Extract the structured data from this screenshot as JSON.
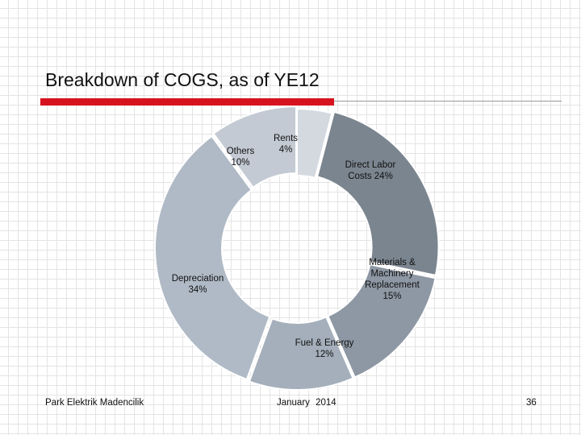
{
  "slide": {
    "title": "Breakdown of COGS, as of YE12",
    "footer_left": "Park Elektrik Madencilik",
    "footer_center": "January  2014",
    "page_number": "36"
  },
  "colors": {
    "title_rule": "#d7121f",
    "separator": "#ffffff"
  },
  "chart_data": {
    "type": "pie",
    "variant": "donut",
    "title": "",
    "legend": "none",
    "slices": [
      {
        "name": "Rents",
        "value": 4,
        "label_lines": [
          "Rents",
          "4%"
        ],
        "color": "#d4d9df"
      },
      {
        "name": "Direct Labor Costs",
        "value": 24,
        "label_lines": [
          "Direct Labor",
          "Costs 24%"
        ],
        "color": "#7b858f"
      },
      {
        "name": "Materials & Machinery Replacement",
        "value": 15,
        "label_lines": [
          "Materials &",
          "Machinery",
          "Replacement",
          "15%"
        ],
        "color": "#8e98a4"
      },
      {
        "name": "Fuel & Energy",
        "value": 12,
        "label_lines": [
          "Fuel & Energy",
          "12%"
        ],
        "color": "#a4afbb"
      },
      {
        "name": "Depreciation",
        "value": 34,
        "label_lines": [
          "Depreciation",
          "34%"
        ],
        "color": "#b0bac6"
      },
      {
        "name": "Others",
        "value": 10,
        "label_lines": [
          "Others",
          "10%"
        ],
        "color": "#c3cad3"
      }
    ]
  }
}
